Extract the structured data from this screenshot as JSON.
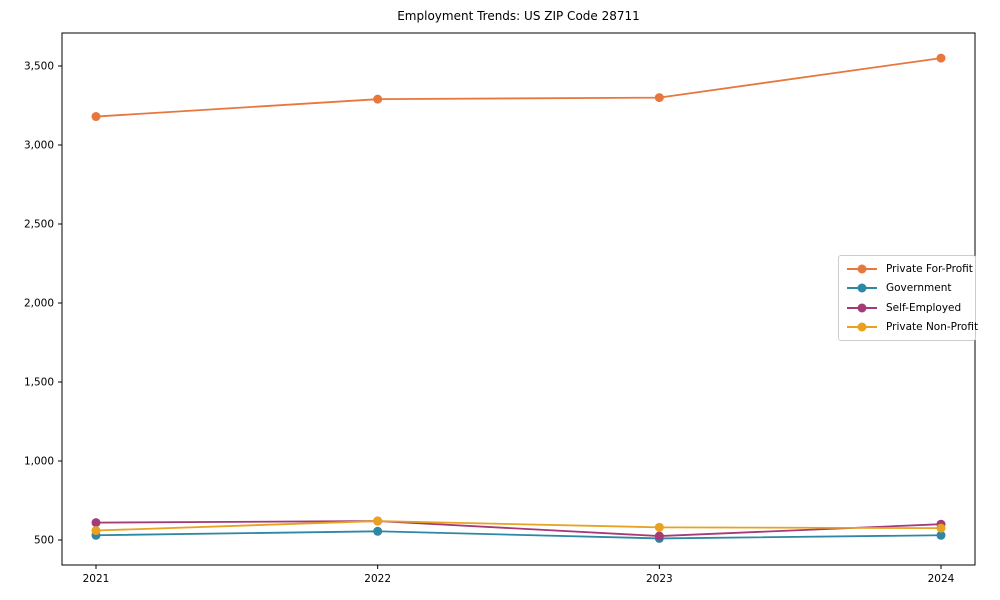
{
  "chart_data": {
    "type": "line",
    "title": "Employment Trends: US ZIP Code 28711",
    "x": [
      "2021",
      "2022",
      "2023",
      "2024"
    ],
    "series": [
      {
        "name": "Private For-Profit",
        "color": "#e8773d",
        "values": [
          3180,
          3290,
          3300,
          3550
        ]
      },
      {
        "name": "Government",
        "color": "#2e87a5",
        "values": [
          530,
          555,
          510,
          530
        ]
      },
      {
        "name": "Self-Employed",
        "color": "#a43a76",
        "values": [
          610,
          620,
          525,
          600
        ]
      },
      {
        "name": "Private Non-Profit",
        "color": "#e9a21f",
        "values": [
          560,
          620,
          580,
          575
        ]
      }
    ],
    "yticks": [
      500,
      1000,
      1500,
      2000,
      2500,
      3000,
      3500
    ],
    "ylim": [
      342,
      3709
    ],
    "xlabel": "",
    "ylabel": "",
    "grid": false,
    "legend_position": "center-right",
    "marker": "circle",
    "frame": "full-box"
  }
}
